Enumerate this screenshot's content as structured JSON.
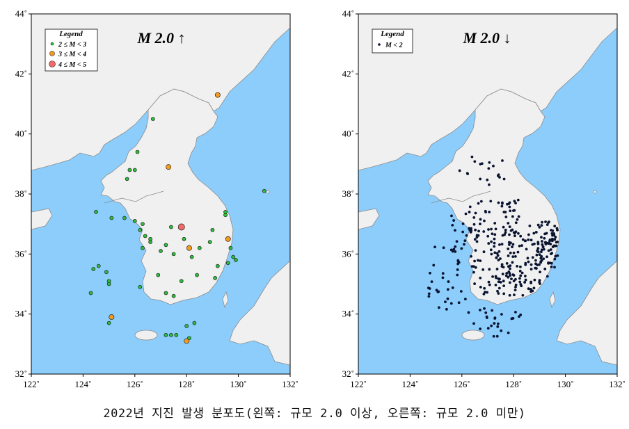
{
  "caption": "2022년 지진 발생 분포도(왼쪽: 규모 2.0 이상, 오른쪽: 규모 2.0 미만)",
  "colors": {
    "sea": "#8ccdfc",
    "land": "#f0f0f0",
    "coast": "#8a8a8a",
    "small": "#2bbf3a",
    "medium": "#f49b1e",
    "large": "#f06a6a",
    "tiny": "#0a1430"
  },
  "axes": {
    "lon_ticks": [
      "122˚",
      "124˚",
      "126˚",
      "128˚",
      "130˚",
      "132˚"
    ],
    "lat_ticks": [
      "32˚",
      "34˚",
      "36˚",
      "38˚",
      "40˚",
      "42˚",
      "44˚"
    ],
    "lon_range": [
      122,
      132
    ],
    "lat_range": [
      32,
      44
    ]
  },
  "left_map": {
    "title": "M 2.0 ↑",
    "legend": {
      "title": "Legend",
      "items": [
        {
          "label": "2 ≤ M < 3",
          "class": "small"
        },
        {
          "label": "3 ≤ M < 4",
          "class": "medium"
        },
        {
          "label": "4 ≤ M < 5",
          "class": "large"
        }
      ]
    }
  },
  "right_map": {
    "title": "M 2.0 ↓",
    "legend": {
      "title": "Legend",
      "items": [
        {
          "label": "M < 2",
          "class": "tiny"
        }
      ]
    }
  },
  "chart_data": {
    "type": "scatter",
    "xlim": [
      122,
      132
    ],
    "ylim": [
      32,
      44
    ],
    "series": [
      {
        "name": "2 ≤ M < 3",
        "points": [
          [
            126.7,
            40.5
          ],
          [
            126.1,
            39.4
          ],
          [
            125.8,
            38.8
          ],
          [
            126.0,
            38.8
          ],
          [
            125.7,
            38.5
          ],
          [
            124.5,
            37.4
          ],
          [
            125.1,
            37.2
          ],
          [
            125.6,
            37.2
          ],
          [
            126.0,
            37.1
          ],
          [
            126.2,
            36.8
          ],
          [
            126.3,
            37.0
          ],
          [
            126.4,
            36.6
          ],
          [
            126.6,
            36.4
          ],
          [
            127.0,
            36.1
          ],
          [
            127.2,
            36.3
          ],
          [
            127.5,
            36.0
          ],
          [
            127.9,
            36.5
          ],
          [
            128.2,
            35.9
          ],
          [
            128.5,
            36.2
          ],
          [
            128.9,
            36.4
          ],
          [
            129.0,
            36.8
          ],
          [
            129.5,
            37.4
          ],
          [
            129.5,
            37.3
          ],
          [
            129.7,
            36.2
          ],
          [
            129.8,
            35.9
          ],
          [
            129.9,
            35.8
          ],
          [
            129.6,
            35.7
          ],
          [
            129.2,
            35.6
          ],
          [
            129.1,
            35.2
          ],
          [
            128.4,
            35.3
          ],
          [
            127.8,
            35.1
          ],
          [
            127.2,
            34.7
          ],
          [
            127.5,
            34.6
          ],
          [
            128.0,
            33.6
          ],
          [
            127.4,
            33.3
          ],
          [
            127.2,
            33.3
          ],
          [
            127.6,
            33.3
          ],
          [
            128.1,
            33.2
          ],
          [
            128.3,
            33.7
          ],
          [
            126.6,
            36.5
          ],
          [
            124.6,
            35.6
          ],
          [
            124.4,
            35.5
          ],
          [
            124.9,
            35.4
          ],
          [
            125.0,
            35.1
          ],
          [
            125.0,
            35.0
          ],
          [
            124.3,
            34.7
          ],
          [
            125.0,
            33.7
          ],
          [
            131.0,
            38.1
          ],
          [
            127.4,
            36.9
          ],
          [
            126.3,
            36.2
          ],
          [
            126.9,
            35.3
          ],
          [
            126.2,
            34.9
          ]
        ]
      },
      {
        "name": "3 ≤ M < 4",
        "points": [
          [
            129.2,
            41.3
          ],
          [
            127.3,
            38.9
          ],
          [
            128.1,
            36.2
          ],
          [
            129.6,
            36.5
          ],
          [
            125.1,
            33.9
          ],
          [
            128.0,
            33.1
          ]
        ]
      },
      {
        "name": "4 ≤ M < 5",
        "points": [
          [
            127.8,
            36.9
          ]
        ]
      }
    ]
  }
}
